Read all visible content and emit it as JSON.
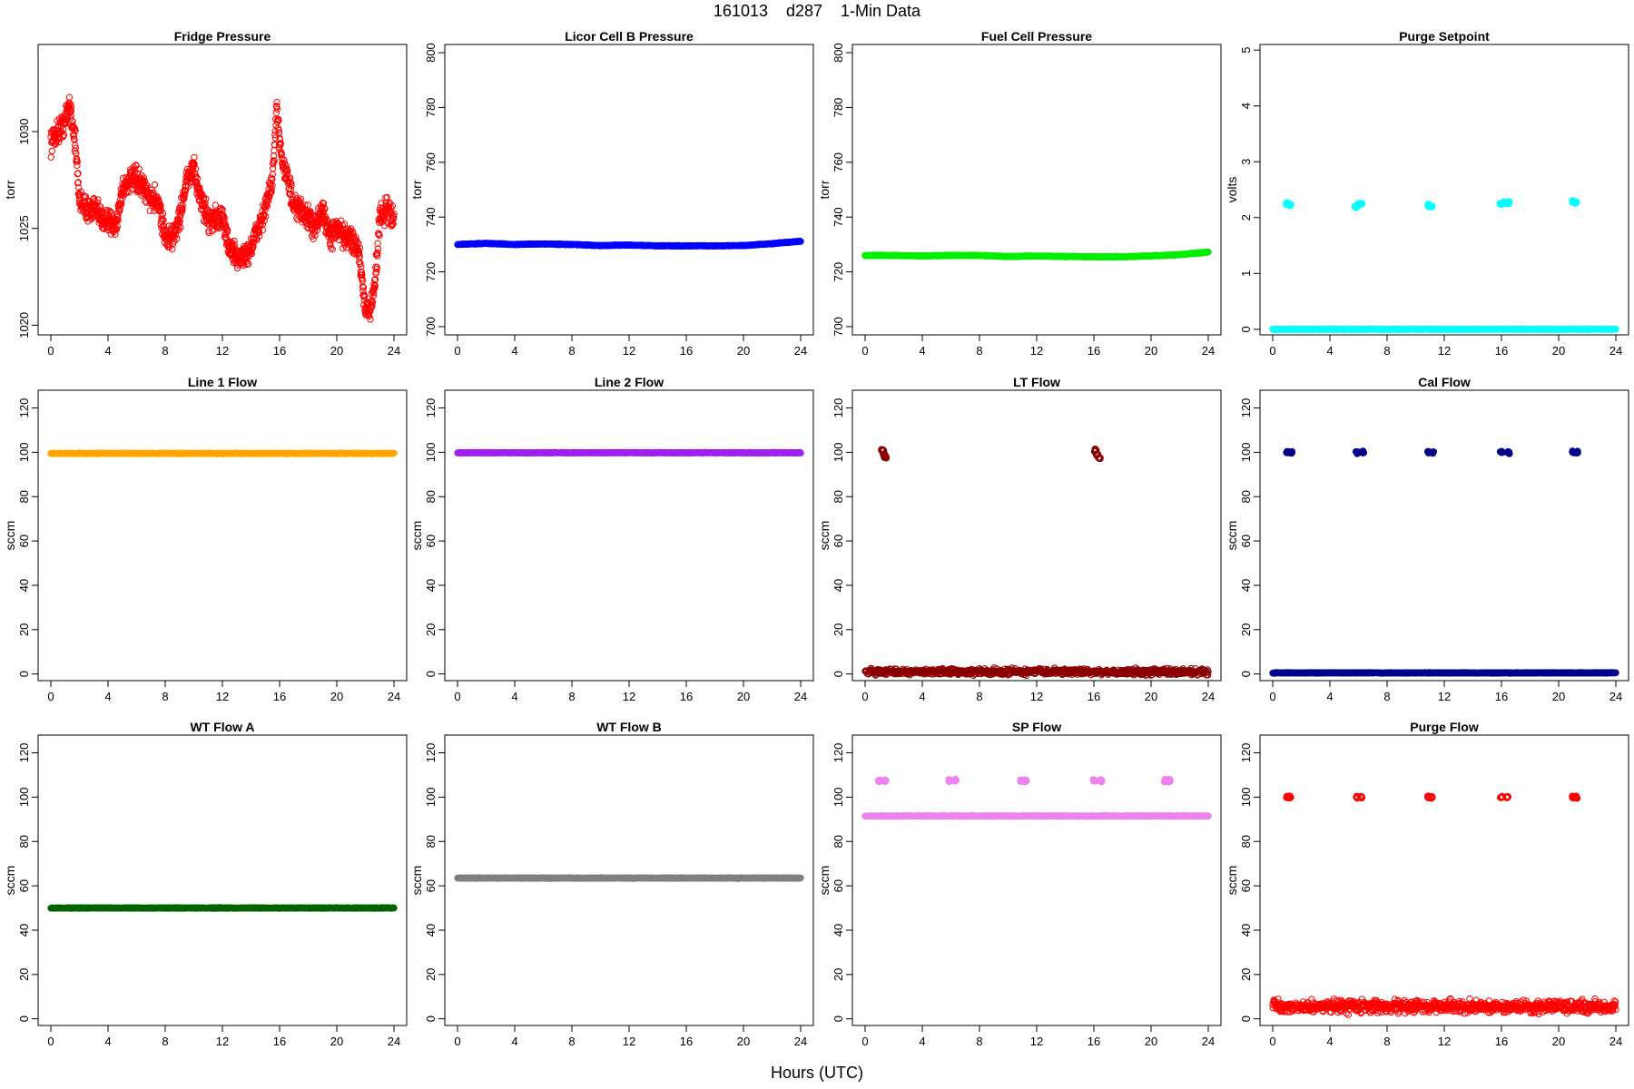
{
  "figure": {
    "title": "161013    d287    1-Min Data",
    "xlabel": "Hours (UTC)"
  },
  "chart_data": [
    {
      "type": "scatter",
      "title": "Fridge Pressure",
      "xlabel": "",
      "ylabel": "torr",
      "xlim": [
        0,
        24
      ],
      "ylim": [
        1019.5,
        1034.5
      ],
      "xticks": [
        0,
        4,
        8,
        12,
        16,
        20,
        24
      ],
      "yticks": [
        1020,
        1025,
        1030
      ],
      "color": "#ff0000",
      "marker": "open-circle",
      "series": [
        {
          "x": [
            0,
            0.5,
            1,
            1.3,
            1.7,
            2,
            2.5,
            3,
            3.5,
            4,
            4.5,
            5,
            5.5,
            6,
            6.5,
            7,
            7.5,
            8,
            8.5,
            9,
            9.5,
            10,
            10.5,
            11,
            11.5,
            12,
            12.5,
            13,
            13.5,
            14,
            14.5,
            15,
            15.5,
            15.8,
            16.2,
            16.6,
            17,
            17.5,
            18,
            18.5,
            19,
            19.5,
            20,
            20.5,
            21,
            21.5,
            22,
            22.3,
            22.7,
            23,
            23.5,
            24
          ],
          "y": [
            1029.5,
            1030.0,
            1030.5,
            1031.5,
            1029.5,
            1026.5,
            1026.0,
            1026.0,
            1025.5,
            1025.5,
            1025.0,
            1027.0,
            1027.5,
            1027.5,
            1027.0,
            1026.5,
            1026.5,
            1024.5,
            1024.5,
            1025.5,
            1027.5,
            1028.0,
            1026.5,
            1025.5,
            1025.5,
            1025.5,
            1024.0,
            1023.5,
            1023.5,
            1024.0,
            1025.0,
            1026.0,
            1027.5,
            1031.0,
            1028.5,
            1027.5,
            1026.0,
            1026.0,
            1025.5,
            1025.0,
            1026.0,
            1024.5,
            1025.0,
            1024.5,
            1024.5,
            1024.0,
            1021.0,
            1020.5,
            1022.5,
            1025.5,
            1026.0,
            1025.5
          ]
        }
      ]
    },
    {
      "type": "scatter",
      "title": "Licor Cell B Pressure",
      "xlabel": "",
      "ylabel": "torr",
      "xlim": [
        0,
        24
      ],
      "ylim": [
        697,
        803
      ],
      "xticks": [
        0,
        4,
        8,
        12,
        16,
        20,
        24
      ],
      "yticks": [
        700,
        720,
        740,
        760,
        780,
        800
      ],
      "color": "#0000ff",
      "marker": "filled-dense",
      "series": [
        {
          "x": [
            0,
            2,
            4,
            6,
            8,
            10,
            12,
            14,
            16,
            18,
            20,
            22,
            24
          ],
          "y": [
            730.0,
            730.4,
            730.0,
            730.2,
            730.0,
            729.6,
            729.8,
            729.5,
            729.5,
            729.5,
            729.6,
            730.3,
            731.2
          ]
        }
      ]
    },
    {
      "type": "scatter",
      "title": "Fuel Cell Pressure",
      "xlabel": "",
      "ylabel": "torr",
      "xlim": [
        0,
        24
      ],
      "ylim": [
        697,
        803
      ],
      "xticks": [
        0,
        4,
        8,
        12,
        16,
        20,
        24
      ],
      "yticks": [
        700,
        720,
        740,
        760,
        780,
        800
      ],
      "color": "#00ee00",
      "marker": "filled-dense",
      "series": [
        {
          "x": [
            0,
            2,
            4,
            6,
            8,
            10,
            12,
            14,
            16,
            18,
            20,
            22,
            24
          ],
          "y": [
            726.0,
            726.0,
            725.8,
            726.0,
            726.0,
            725.6,
            725.8,
            725.6,
            725.5,
            725.5,
            725.8,
            726.3,
            727.2
          ]
        }
      ]
    },
    {
      "type": "scatter",
      "title": "Purge Setpoint",
      "xlabel": "",
      "ylabel": "volts",
      "xlim": [
        0,
        24
      ],
      "ylim": [
        -0.1,
        5.1
      ],
      "xticks": [
        0,
        4,
        8,
        12,
        16,
        20,
        24
      ],
      "yticks": [
        0,
        1,
        2,
        3,
        4,
        5
      ],
      "color": "#00ffff",
      "marker": "filled-dense",
      "series": [
        {
          "x": [
            0,
            24
          ],
          "y": [
            0,
            0
          ]
        },
        {
          "x": [
            1.0,
            1.2,
            5.8,
            6.0,
            6.2,
            10.9,
            11.1,
            16.0,
            16.2,
            16.5,
            21.0,
            21.2
          ],
          "y": [
            2.25,
            2.23,
            2.2,
            2.23,
            2.25,
            2.22,
            2.2,
            2.25,
            2.27,
            2.27,
            2.29,
            2.27
          ]
        }
      ]
    },
    {
      "type": "scatter",
      "title": "Line 1 Flow",
      "xlabel": "",
      "ylabel": "sccm",
      "xlim": [
        0,
        24
      ],
      "ylim": [
        -3,
        128
      ],
      "xticks": [
        0,
        4,
        8,
        12,
        16,
        20,
        24
      ],
      "yticks": [
        0,
        20,
        40,
        60,
        80,
        100,
        120
      ],
      "color": "#ffa500",
      "marker": "filled-dense",
      "series": [
        {
          "x": [
            0,
            24
          ],
          "y": [
            99.5,
            99.5
          ]
        }
      ]
    },
    {
      "type": "scatter",
      "title": "Line 2 Flow",
      "xlabel": "",
      "ylabel": "sccm",
      "xlim": [
        0,
        24
      ],
      "ylim": [
        -3,
        128
      ],
      "xticks": [
        0,
        4,
        8,
        12,
        16,
        20,
        24
      ],
      "yticks": [
        0,
        20,
        40,
        60,
        80,
        100,
        120
      ],
      "color": "#a020f0",
      "marker": "filled-dense",
      "series": [
        {
          "x": [
            0,
            24
          ],
          "y": [
            99.8,
            99.8
          ]
        }
      ]
    },
    {
      "type": "scatter",
      "title": "LT Flow",
      "xlabel": "",
      "ylabel": "sccm",
      "xlim": [
        0,
        24
      ],
      "ylim": [
        -3,
        128
      ],
      "xticks": [
        0,
        4,
        8,
        12,
        16,
        20,
        24
      ],
      "yticks": [
        0,
        20,
        40,
        60,
        80,
        100,
        120
      ],
      "color": "#8b0000",
      "marker": "open-circle",
      "series": [
        {
          "x": [
            0,
            24
          ],
          "y": [
            1,
            1
          ],
          "band": [
            -1,
            3
          ]
        },
        {
          "x": [
            1.2,
            1.3,
            1.4,
            16.1,
            16.2,
            16.4
          ],
          "y": [
            101,
            99,
            98,
            101,
            99,
            97.5
          ]
        }
      ]
    },
    {
      "type": "scatter",
      "title": "Cal Flow",
      "xlabel": "",
      "ylabel": "sccm",
      "xlim": [
        0,
        24
      ],
      "ylim": [
        -3,
        128
      ],
      "xticks": [
        0,
        4,
        8,
        12,
        16,
        20,
        24
      ],
      "yticks": [
        0,
        20,
        40,
        60,
        80,
        100,
        120
      ],
      "color": "#00008b",
      "marker": "filled-dense",
      "series": [
        {
          "x": [
            0,
            24
          ],
          "y": [
            0.5,
            0.5
          ]
        },
        {
          "x": [
            1.0,
            1.3,
            5.9,
            6.3,
            10.9,
            11.2,
            16.0,
            16.5,
            21.0,
            21.3
          ],
          "y": [
            100,
            100,
            100,
            100,
            100,
            100,
            100,
            100,
            100,
            100
          ]
        }
      ]
    },
    {
      "type": "scatter",
      "title": "WT Flow A",
      "xlabel": "",
      "ylabel": "sccm",
      "xlim": [
        0,
        24
      ],
      "ylim": [
        -3,
        128
      ],
      "xticks": [
        0,
        4,
        8,
        12,
        16,
        20,
        24
      ],
      "yticks": [
        0,
        20,
        40,
        60,
        80,
        100,
        120
      ],
      "color": "#006400",
      "marker": "filled-dense",
      "series": [
        {
          "x": [
            0,
            24
          ],
          "y": [
            50,
            50
          ]
        }
      ]
    },
    {
      "type": "scatter",
      "title": "WT Flow B",
      "xlabel": "",
      "ylabel": "sccm",
      "xlim": [
        0,
        24
      ],
      "ylim": [
        -3,
        128
      ],
      "xticks": [
        0,
        4,
        8,
        12,
        16,
        20,
        24
      ],
      "yticks": [
        0,
        20,
        40,
        60,
        80,
        100,
        120
      ],
      "color": "#808080",
      "marker": "filled-dense",
      "series": [
        {
          "x": [
            0,
            24
          ],
          "y": [
            63.5,
            63.5
          ]
        }
      ]
    },
    {
      "type": "scatter",
      "title": "SP Flow",
      "xlabel": "",
      "ylabel": "sccm",
      "xlim": [
        0,
        24
      ],
      "ylim": [
        -3,
        128
      ],
      "xticks": [
        0,
        4,
        8,
        12,
        16,
        20,
        24
      ],
      "yticks": [
        0,
        20,
        40,
        60,
        80,
        100,
        120
      ],
      "color": "#ee82ee",
      "marker": "filled-dense",
      "series": [
        {
          "x": [
            0,
            24
          ],
          "y": [
            91.5,
            91.5
          ]
        },
        {
          "x": [
            1.0,
            1.4,
            5.9,
            6.3,
            10.9,
            11.2,
            16.0,
            16.5,
            21.0,
            21.3
          ],
          "y": [
            107.5,
            107.5,
            107.5,
            107.5,
            107.5,
            107.5,
            107.5,
            107.5,
            107.5,
            107.5
          ]
        }
      ]
    },
    {
      "type": "scatter",
      "title": "Purge Flow",
      "xlabel": "",
      "ylabel": "sccm",
      "xlim": [
        0,
        24
      ],
      "ylim": [
        -3,
        128
      ],
      "xticks": [
        0,
        4,
        8,
        12,
        16,
        20,
        24
      ],
      "yticks": [
        0,
        20,
        40,
        60,
        80,
        100,
        120
      ],
      "color": "#ff0000",
      "marker": "open-circle",
      "series": [
        {
          "x": [
            0,
            24
          ],
          "y": [
            5.5,
            5.5
          ],
          "band": [
            2,
            10
          ]
        },
        {
          "x": [
            1.0,
            1.2,
            5.9,
            6.2,
            10.9,
            11.1,
            16.0,
            16.4,
            21.0,
            21.2
          ],
          "y": [
            100,
            100,
            100,
            100,
            100,
            100,
            100,
            100,
            100,
            100
          ]
        }
      ]
    }
  ]
}
